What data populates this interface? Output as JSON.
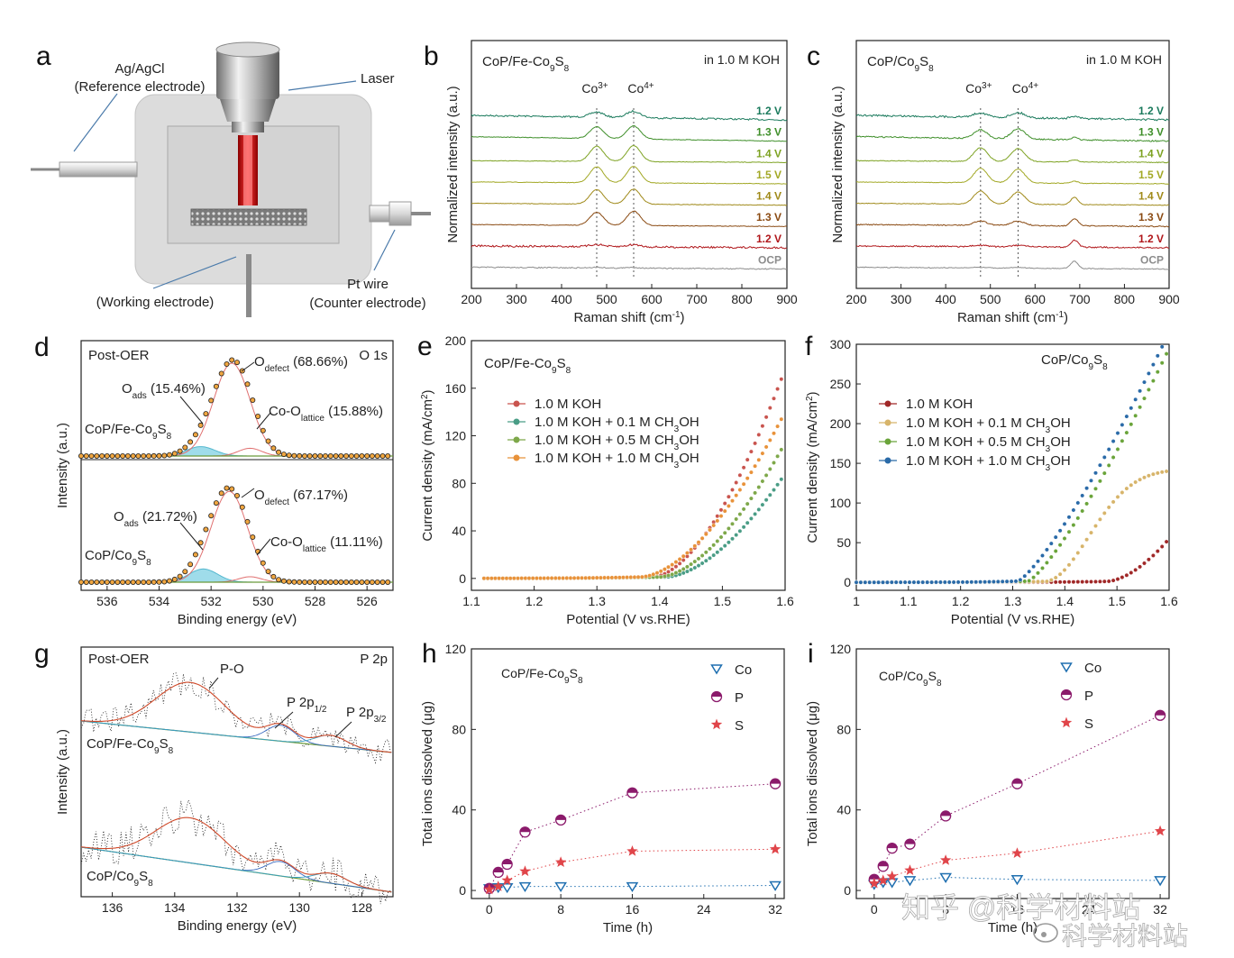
{
  "panels": {
    "a": {
      "label": "a",
      "ref_electrode": "Ag/AgCl",
      "ref_electrode_note": "(Reference electrode)",
      "laser": "Laser",
      "working_electrode": "(Working electrode)",
      "counter_wire": "Pt wire",
      "counter_electrode": "(Counter electrode)"
    },
    "b": {
      "label": "b",
      "title": "CoP/Fe-Co9S8",
      "medium": "in 1.0 M KOH",
      "xlabel": "Raman shift (cm-1)",
      "ylabel": "Normalized intensity (a.u.)",
      "peak1": "Co3+",
      "peak2": "Co4+"
    },
    "c": {
      "label": "c",
      "title": "CoP/Co9S8",
      "medium": "in 1.0 M KOH",
      "xlabel": "Raman shift (cm-1)",
      "ylabel": "Normalized intensity (a.u.)",
      "peak1": "Co3+",
      "peak2": "Co4+"
    },
    "d": {
      "label": "d",
      "state": "Post-OER",
      "core": "O 1s",
      "sample1": "CoP/Fe-Co9S8",
      "sample2": "CoP/Co9S8",
      "xlabel": "Binding energy (eV)",
      "ylabel": "Intensity (a.u.)",
      "s1_ads": "Oads (15.46%)",
      "s1_defect": "Odefect (68.66%)",
      "s1_lattice": "Co-Olattice (15.88%)",
      "s2_ads": "Oads (21.72%)",
      "s2_defect": "Odefect (67.17%)",
      "s2_lattice": "Co-Olattice (11.11%)"
    },
    "e": {
      "label": "e",
      "title": "CoP/Fe-Co9S8",
      "xlabel": "Potential (V vs.RHE)",
      "ylabel": "Current density (mA/cm2)"
    },
    "f": {
      "label": "f",
      "title": "CoP/Co9S8",
      "xlabel": "Potential (V vs.RHE)",
      "ylabel": "Current density (mA/cm2)"
    },
    "g": {
      "label": "g",
      "state": "Post-OER",
      "core": "P 2p",
      "sample1": "CoP/Fe-Co9S8",
      "sample2": "CoP/Co9S8",
      "peak_po": "P-O",
      "peak_p12": "P 2p1/2",
      "peak_p32": "P 2p3/2",
      "xlabel": "Binding energy (eV)",
      "ylabel": "Intensity (a.u.)"
    },
    "h": {
      "label": "h",
      "title": "CoP/Fe-Co9S8",
      "xlabel": "Time (h)",
      "ylabel": "Total ions dissolved (μg)"
    },
    "i": {
      "label": "i",
      "title": "CoP/Co9S8",
      "xlabel": "Time (h)",
      "ylabel": "Total ions dissolved (μg)"
    }
  },
  "watermark": {
    "main": "知乎 @科学材料站",
    "weibo": "科学材料站"
  },
  "chart_data": [
    {
      "id": "b",
      "type": "line",
      "title": "CoP/Fe-Co9S8 in 1.0 M KOH",
      "xlabel": "Raman shift (cm-1)",
      "ylabel": "Normalized intensity (a.u.)",
      "xlim": [
        200,
        900
      ],
      "xticks": [
        200,
        300,
        400,
        500,
        600,
        700,
        800,
        900
      ],
      "peak_markers": [
        478,
        560
      ],
      "series": [
        {
          "name": "1.2 V",
          "color": "#1a7a5c",
          "p1": 0.35,
          "p2": 0.45,
          "noise": 0.3
        },
        {
          "name": "1.3 V",
          "color": "#3f8f2a",
          "p1": 0.8,
          "p2": 0.9,
          "noise": 0.12
        },
        {
          "name": "1.4 V",
          "color": "#7da222",
          "p1": 1.05,
          "p2": 1.1,
          "noise": 0.1
        },
        {
          "name": "1.5 V",
          "color": "#a2a825",
          "p1": 1.1,
          "p2": 1.15,
          "noise": 0.1
        },
        {
          "name": "1.4 V",
          "color": "#a08a1a",
          "p1": 1.0,
          "p2": 1.05,
          "noise": 0.1
        },
        {
          "name": "1.3 V",
          "color": "#8a4a12",
          "p1": 0.9,
          "p2": 1.0,
          "noise": 0.12
        },
        {
          "name": "1.2 V",
          "color": "#b0161a",
          "p1": 0.15,
          "p2": 0.15,
          "noise": 0.35
        },
        {
          "name": "OCP",
          "color": "#8c8c8c",
          "p1": 0.05,
          "p2": 0.05,
          "noise": 0.2
        }
      ]
    },
    {
      "id": "c",
      "type": "line",
      "title": "CoP/Co9S8 in 1.0 M KOH",
      "xlabel": "Raman shift (cm-1)",
      "ylabel": "Normalized intensity (a.u.)",
      "xlim": [
        200,
        900
      ],
      "xticks": [
        200,
        300,
        400,
        500,
        600,
        700,
        800,
        900
      ],
      "peak_markers": [
        478,
        562
      ],
      "series": [
        {
          "name": "1.2 V",
          "color": "#1a7a5c",
          "p1": 0.3,
          "p2": 0.35,
          "noise": 0.35
        },
        {
          "name": "1.3 V",
          "color": "#3f8f2a",
          "p1": 0.6,
          "p2": 0.7,
          "noise": 0.25
        },
        {
          "name": "1.4 V",
          "color": "#7da222",
          "p1": 0.95,
          "p2": 0.9,
          "noise": 0.15
        },
        {
          "name": "1.5 V",
          "color": "#a2a825",
          "p1": 1.0,
          "p2": 0.95,
          "noise": 0.12
        },
        {
          "name": "1.4 V",
          "color": "#a08a1a",
          "p1": 0.9,
          "p2": 0.85,
          "noise": 0.12
        },
        {
          "name": "1.3 V",
          "color": "#8a4a12",
          "p1": 0.3,
          "p2": 0.3,
          "noise": 0.2
        },
        {
          "name": "1.2 V",
          "color": "#b0161a",
          "p1": 0.1,
          "p2": 0.1,
          "noise": 0.25
        },
        {
          "name": "OCP",
          "color": "#8c8c8c",
          "p1": 0.05,
          "p2": 0.05,
          "noise": 0.15
        }
      ]
    },
    {
      "id": "d",
      "type": "line",
      "title": "O 1s Post-OER",
      "xlabel": "Binding energy (eV)",
      "ylabel": "Intensity (a.u.)",
      "xlim": [
        537,
        525
      ],
      "xticks": [
        536,
        534,
        532,
        530,
        528,
        526
      ],
      "components": [
        {
          "sample": "CoP/Fe-Co9S8",
          "ads_center": 532.4,
          "ads_pct": 15.46,
          "defect_center": 531.2,
          "defect_pct": 68.66,
          "lattice_center": 530.5,
          "lattice_pct": 15.88
        },
        {
          "sample": "CoP/Co9S8",
          "ads_center": 532.3,
          "ads_pct": 21.72,
          "defect_center": 531.3,
          "defect_pct": 67.17,
          "lattice_center": 530.5,
          "lattice_pct": 11.11
        }
      ]
    },
    {
      "id": "e",
      "type": "scatter",
      "title": "CoP/Fe-Co9S8",
      "xlabel": "Potential (V vs.RHE)",
      "ylabel": "Current density (mA/cm2)",
      "xlim": [
        1.1,
        1.6
      ],
      "ylim": [
        -10,
        200
      ],
      "xticks": [
        1.1,
        1.2,
        1.3,
        1.4,
        1.5,
        1.6
      ],
      "yticks": [
        0,
        40,
        80,
        120,
        160,
        200
      ],
      "series": [
        {
          "name": "1.0 M KOH",
          "color": "#c9544e",
          "onset": 1.39,
          "j_end": 176
        },
        {
          "name": "1.0 M KOH + 0.1 M CH3OH",
          "color": "#4a9d86",
          "onset": 1.41,
          "j_end": 88
        },
        {
          "name": "1.0 M KOH + 0.5 M CH3OH",
          "color": "#7ea84a",
          "onset": 1.4,
          "j_end": 114
        },
        {
          "name": "1.0 M KOH + 1.0 M CH3OH",
          "color": "#e8923a",
          "onset": 1.37,
          "j_end": 140
        }
      ]
    },
    {
      "id": "f",
      "type": "scatter",
      "title": "CoP/Co9S8",
      "xlabel": "Potential (V vs.RHE)",
      "ylabel": "Current density (mA/cm2)",
      "xlim": [
        1.0,
        1.6
      ],
      "ylim": [
        -10,
        300
      ],
      "xticks": [
        1.0,
        1.1,
        1.2,
        1.3,
        1.4,
        1.5,
        1.6
      ],
      "yticks": [
        0,
        50,
        100,
        150,
        200,
        250,
        300
      ],
      "series": [
        {
          "name": "1.0 M KOH",
          "color": "#a02828",
          "onset": 1.48,
          "j_end": 55
        },
        {
          "name": "1.0 M KOH + 0.1 M CH3OH",
          "color": "#d7b46a",
          "onset": 1.36,
          "j_end": 143
        },
        {
          "name": "1.0 M KOH + 0.5 M CH3OH",
          "color": "#6aa43a",
          "onset": 1.33,
          "j_end": 300
        },
        {
          "name": "1.0 M KOH + 1.0 M CH3OH",
          "color": "#2a6aa8",
          "onset": 1.31,
          "j_end": 300
        }
      ]
    },
    {
      "id": "g",
      "type": "line",
      "title": "P 2p Post-OER",
      "xlabel": "Binding energy (eV)",
      "ylabel": "Intensity (a.u.)",
      "xlim": [
        137,
        127
      ],
      "xticks": [
        136,
        134,
        132,
        130,
        128
      ],
      "peaks": [
        {
          "name": "P-O",
          "center": 133.5
        },
        {
          "name": "P 2p1/2",
          "center": 130.8
        },
        {
          "name": "P 2p3/2",
          "center": 129.2
        }
      ],
      "samples": [
        "CoP/Fe-Co9S8",
        "CoP/Co9S8"
      ]
    },
    {
      "id": "h",
      "type": "scatter",
      "title": "CoP/Fe-Co9S8",
      "xlabel": "Time (h)",
      "ylabel": "Total ions dissolved (μg)",
      "xlim": [
        -2,
        33
      ],
      "ylim": [
        -4,
        120
      ],
      "xticks": [
        0,
        8,
        16,
        24,
        32
      ],
      "yticks": [
        0,
        40,
        80,
        120
      ],
      "x": [
        0,
        1,
        2,
        4,
        8,
        16,
        32
      ],
      "series": [
        {
          "name": "Co",
          "color": "#1f6fb0",
          "marker": "triangle",
          "values": [
            1,
            1.5,
            1.5,
            2,
            2,
            2,
            2.5
          ]
        },
        {
          "name": "P",
          "color": "#8b1a6b",
          "marker": "half-circle",
          "values": [
            1,
            9,
            13,
            29,
            35,
            48.5,
            53
          ]
        },
        {
          "name": "S",
          "color": "#e0454a",
          "marker": "star",
          "values": [
            0.5,
            2,
            5,
            9.5,
            14,
            19.5,
            20.5
          ]
        }
      ]
    },
    {
      "id": "i",
      "type": "scatter",
      "title": "CoP/Co9S8",
      "xlabel": "Time (h)",
      "ylabel": "Total ions dissolved (μg)",
      "xlim": [
        -2,
        33
      ],
      "ylim": [
        -4,
        120
      ],
      "xticks": [
        0,
        8,
        16,
        24,
        32
      ],
      "yticks": [
        0,
        40,
        80,
        120
      ],
      "x": [
        0,
        1,
        2,
        4,
        8,
        16,
        32
      ],
      "series": [
        {
          "name": "Co",
          "color": "#1f6fb0",
          "marker": "triangle",
          "values": [
            3,
            4,
            4,
            5,
            6.5,
            5.5,
            5
          ]
        },
        {
          "name": "P",
          "color": "#8b1a6b",
          "marker": "half-circle",
          "values": [
            5.5,
            12,
            21,
            23,
            37,
            53,
            87
          ]
        },
        {
          "name": "S",
          "color": "#e0454a",
          "marker": "star",
          "values": [
            3.5,
            5,
            7,
            10,
            15,
            18.5,
            29.5
          ]
        }
      ]
    }
  ]
}
